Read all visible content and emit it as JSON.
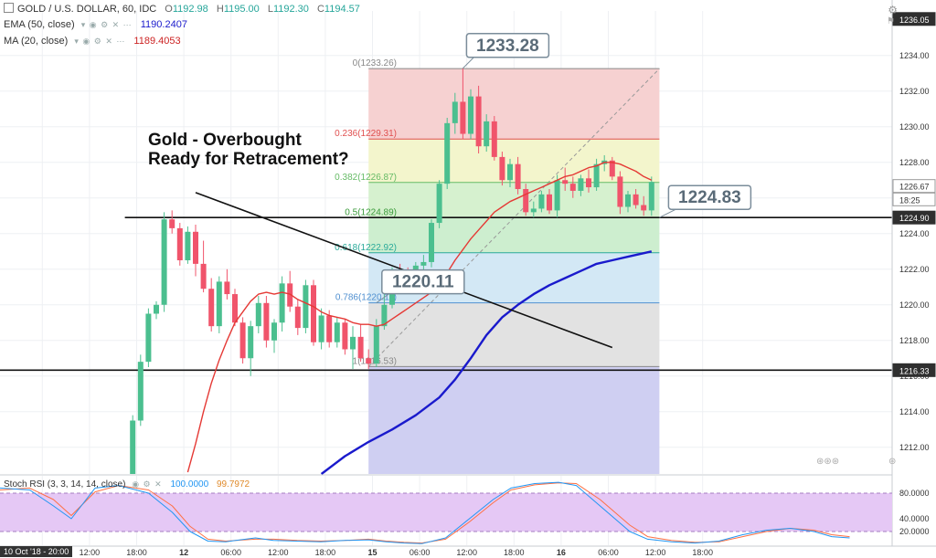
{
  "header": {
    "symbol": "GOLD / U.S. DOLLAR, 60, IDC",
    "o_label": "O",
    "o_val": "1192.98",
    "h_label": "H",
    "h_val": "1195.00",
    "l_label": "L",
    "l_val": "1192.30",
    "c_label": "C",
    "c_val": "1194.57",
    "ema_label": "EMA (50, close)",
    "ema_val": "1190.2407",
    "ma_label": "MA (20, close)",
    "ma_val": "1189.4053",
    "rsi_label": "Stoch RSI (3, 3, 14, 14, close)",
    "rsi_k": "100.0000",
    "rsi_d": "99.7972"
  },
  "bottom_date": "10 Oct '18 - 20:00",
  "chart_data": {
    "type": "candlestick",
    "ylim": [
      1210.5,
      1236.5
    ],
    "yticks": [
      "1212.00",
      "1214.00",
      "1216.00",
      "1218.00",
      "1220.00",
      "1222.00",
      "1224.00",
      "1226.00",
      "1228.00",
      "1230.00",
      "1232.00",
      "1234.00"
    ],
    "xticks": [
      {
        "i": 5.5,
        "label": "06:00"
      },
      {
        "i": 11.5,
        "label": "12:00"
      },
      {
        "i": 17.5,
        "label": "18:00"
      },
      {
        "i": 23.5,
        "label": "12"
      },
      {
        "i": 29.5,
        "label": "06:00"
      },
      {
        "i": 35.5,
        "label": "12:00"
      },
      {
        "i": 41.5,
        "label": "18:00"
      },
      {
        "i": 47.5,
        "label": "15"
      },
      {
        "i": 53.5,
        "label": "06:00"
      },
      {
        "i": 59.5,
        "label": "12:00"
      },
      {
        "i": 65.5,
        "label": "18:00"
      },
      {
        "i": 71.5,
        "label": "16"
      },
      {
        "i": 77.5,
        "label": "06:00"
      },
      {
        "i": 83.5,
        "label": "12:00"
      },
      {
        "i": 89.5,
        "label": "18:00"
      }
    ],
    "candles": [
      [
        17,
        1210.5,
        1213.8,
        1210.5,
        1213.5
      ],
      [
        18,
        1213.5,
        1217.2,
        1213.2,
        1216.8
      ],
      [
        19,
        1216.8,
        1219.8,
        1216.5,
        1219.5
      ],
      [
        20,
        1219.5,
        1220.2,
        1219.2,
        1220.0
      ],
      [
        21,
        1220.0,
        1225.2,
        1219.6,
        1224.8
      ],
      [
        22,
        1224.8,
        1225.3,
        1224.0,
        1224.3
      ],
      [
        23,
        1224.3,
        1224.6,
        1222.2,
        1222.5
      ],
      [
        24,
        1222.5,
        1224.4,
        1222.3,
        1224.1
      ],
      [
        25,
        1224.1,
        1224.5,
        1221.6,
        1222.3
      ],
      [
        26,
        1222.3,
        1223.6,
        1220.7,
        1220.9
      ],
      [
        27,
        1220.9,
        1221.5,
        1218.5,
        1218.8
      ],
      [
        28,
        1218.8,
        1221.6,
        1218.4,
        1221.3
      ],
      [
        29,
        1221.3,
        1222.0,
        1220.3,
        1220.6
      ],
      [
        30,
        1220.6,
        1220.9,
        1218.8,
        1219.0
      ],
      [
        31,
        1219.0,
        1219.3,
        1216.7,
        1217.0
      ],
      [
        32,
        1217.0,
        1219.1,
        1216.0,
        1218.8
      ],
      [
        33,
        1218.8,
        1220.5,
        1218.4,
        1220.1
      ],
      [
        34,
        1220.1,
        1220.5,
        1217.6,
        1218.0
      ],
      [
        35,
        1218.0,
        1219.2,
        1217.3,
        1219.0
      ],
      [
        36,
        1219.0,
        1221.6,
        1218.5,
        1221.2
      ],
      [
        37,
        1221.2,
        1221.9,
        1219.6,
        1219.9
      ],
      [
        38,
        1219.9,
        1220.3,
        1218.3,
        1218.7
      ],
      [
        39,
        1218.7,
        1221.4,
        1218.4,
        1221.1
      ],
      [
        40,
        1221.1,
        1221.4,
        1217.7,
        1217.9
      ],
      [
        41,
        1217.9,
        1219.8,
        1217.5,
        1219.4
      ],
      [
        42,
        1219.4,
        1219.7,
        1217.6,
        1217.9
      ],
      [
        43,
        1217.9,
        1219.3,
        1217.6,
        1219.0
      ],
      [
        44,
        1219.0,
        1219.2,
        1217.2,
        1217.5
      ],
      [
        45,
        1217.5,
        1218.8,
        1216.4,
        1218.2
      ],
      [
        46,
        1218.2,
        1218.9,
        1216.8,
        1217.0
      ],
      [
        47,
        1217.0,
        1217.5,
        1216.4,
        1216.7
      ],
      [
        48,
        1216.7,
        1219.2,
        1216.5,
        1218.8
      ],
      [
        49,
        1218.8,
        1220.6,
        1218.6,
        1220.0
      ],
      [
        50,
        1220.0,
        1222.1,
        1219.8,
        1221.9
      ],
      [
        51,
        1221.9,
        1222.3,
        1221.5,
        1221.8
      ],
      [
        52,
        1221.8,
        1222.1,
        1221.2,
        1221.5
      ],
      [
        53,
        1221.5,
        1222.4,
        1221.3,
        1222.2
      ],
      [
        54,
        1222.2,
        1222.8,
        1221.9,
        1222.4
      ],
      [
        55,
        1222.4,
        1224.8,
        1222.1,
        1224.6
      ],
      [
        56,
        1224.6,
        1227.0,
        1224.3,
        1226.8
      ],
      [
        57,
        1226.8,
        1230.5,
        1226.5,
        1230.2
      ],
      [
        58,
        1230.2,
        1231.9,
        1229.6,
        1231.4
      ],
      [
        59,
        1231.4,
        1233.28,
        1229.3,
        1229.6
      ],
      [
        60,
        1229.6,
        1232.1,
        1229.3,
        1231.7
      ],
      [
        61,
        1231.7,
        1232.3,
        1228.5,
        1228.9
      ],
      [
        62,
        1228.9,
        1230.7,
        1228.6,
        1230.3
      ],
      [
        63,
        1230.3,
        1230.6,
        1228.1,
        1228.3
      ],
      [
        64,
        1228.3,
        1228.6,
        1226.7,
        1227.0
      ],
      [
        65,
        1227.0,
        1228.2,
        1226.6,
        1227.9
      ],
      [
        66,
        1227.9,
        1228.3,
        1226.2,
        1226.5
      ],
      [
        67,
        1226.5,
        1226.8,
        1225.0,
        1225.2
      ],
      [
        68,
        1225.2,
        1225.8,
        1224.9,
        1225.4
      ],
      [
        69,
        1225.4,
        1226.4,
        1225.2,
        1226.2
      ],
      [
        70,
        1226.2,
        1226.5,
        1225.1,
        1225.3
      ],
      [
        71,
        1225.3,
        1227.3,
        1224.9,
        1227.0
      ],
      [
        72,
        1227.0,
        1227.7,
        1226.4,
        1226.8
      ],
      [
        73,
        1226.8,
        1227.2,
        1226.0,
        1226.4
      ],
      [
        74,
        1226.4,
        1227.3,
        1226.1,
        1227.1
      ],
      [
        75,
        1227.1,
        1227.6,
        1226.3,
        1226.6
      ],
      [
        76,
        1226.6,
        1228.2,
        1226.4,
        1227.9
      ],
      [
        77,
        1227.9,
        1228.4,
        1227.5,
        1228.1
      ],
      [
        78,
        1228.1,
        1228.3,
        1227.0,
        1227.2
      ],
      [
        79,
        1227.2,
        1227.5,
        1225.1,
        1225.5
      ],
      [
        80,
        1225.5,
        1226.4,
        1225.2,
        1226.2
      ],
      [
        81,
        1226.2,
        1226.5,
        1225.4,
        1225.6
      ],
      [
        82,
        1225.6,
        1226.1,
        1225.0,
        1225.3
      ],
      [
        83,
        1225.3,
        1227.2,
        1225.0,
        1226.9
      ]
    ],
    "ma20": [
      [
        24,
        1210.6
      ],
      [
        25,
        1212.2
      ],
      [
        26,
        1214.0
      ],
      [
        27,
        1215.6
      ],
      [
        28,
        1216.9
      ],
      [
        29,
        1218.0
      ],
      [
        30,
        1219.0
      ],
      [
        31,
        1219.6
      ],
      [
        32,
        1220.2
      ],
      [
        33,
        1220.6
      ],
      [
        34,
        1220.7
      ],
      [
        35,
        1220.6
      ],
      [
        36,
        1220.7
      ],
      [
        37,
        1220.6
      ],
      [
        38,
        1220.3
      ],
      [
        39,
        1220.1
      ],
      [
        40,
        1219.9
      ],
      [
        41,
        1219.6
      ],
      [
        42,
        1219.4
      ],
      [
        43,
        1219.3
      ],
      [
        44,
        1219.2
      ],
      [
        45,
        1219.0
      ],
      [
        46,
        1218.9
      ],
      [
        47,
        1218.9
      ],
      [
        48,
        1218.8
      ],
      [
        49,
        1218.9
      ],
      [
        50,
        1219.2
      ],
      [
        51,
        1219.5
      ],
      [
        52,
        1219.8
      ],
      [
        53,
        1220.1
      ],
      [
        54,
        1220.4
      ],
      [
        55,
        1220.7
      ],
      [
        56,
        1221.2
      ],
      [
        57,
        1221.8
      ],
      [
        58,
        1222.5
      ],
      [
        59,
        1223.1
      ],
      [
        60,
        1223.7
      ],
      [
        61,
        1224.2
      ],
      [
        62,
        1224.7
      ],
      [
        63,
        1225.2
      ],
      [
        64,
        1225.5
      ],
      [
        65,
        1225.8
      ],
      [
        66,
        1226.0
      ],
      [
        67,
        1226.2
      ],
      [
        68,
        1226.4
      ],
      [
        69,
        1226.6
      ],
      [
        70,
        1226.8
      ],
      [
        71,
        1227.0
      ],
      [
        72,
        1227.2
      ],
      [
        73,
        1227.3
      ],
      [
        74,
        1227.5
      ],
      [
        75,
        1227.7
      ],
      [
        76,
        1227.8
      ],
      [
        77,
        1228.0
      ],
      [
        78,
        1228.0
      ],
      [
        79,
        1227.9
      ],
      [
        80,
        1227.7
      ],
      [
        81,
        1227.5
      ],
      [
        82,
        1227.2
      ],
      [
        83,
        1227.0
      ]
    ],
    "ema50": [
      [
        41,
        1210.5
      ],
      [
        44,
        1211.5
      ],
      [
        47,
        1212.3
      ],
      [
        50,
        1213.0
      ],
      [
        53,
        1213.8
      ],
      [
        56,
        1214.8
      ],
      [
        58,
        1215.8
      ],
      [
        60,
        1217.0
      ],
      [
        62,
        1218.3
      ],
      [
        64,
        1219.3
      ],
      [
        66,
        1220.0
      ],
      [
        68,
        1220.6
      ],
      [
        70,
        1221.1
      ],
      [
        72,
        1221.5
      ],
      [
        74,
        1221.9
      ],
      [
        76,
        1222.3
      ],
      [
        78,
        1222.5
      ],
      [
        80,
        1222.7
      ],
      [
        83,
        1223.0
      ]
    ],
    "fib": {
      "x_start": 47,
      "x_end": 84,
      "levels": [
        {
          "ratio": "0",
          "price": 1233.26,
          "label": "0(1233.26)",
          "color": "#888888"
        },
        {
          "ratio": "0.236",
          "price": 1229.31,
          "label": "0.236(1229.31)",
          "color": "#e05050"
        },
        {
          "ratio": "0.382",
          "price": 1226.87,
          "label": "0.382(1226.87)",
          "color": "#66bb66"
        },
        {
          "ratio": "0.5",
          "price": 1224.89,
          "label": "0.5(1224.89)",
          "color": "#3a9a3a"
        },
        {
          "ratio": "0.618",
          "price": 1222.92,
          "label": "0.618(1222.92)",
          "color": "#2aaa9a"
        },
        {
          "ratio": "0.786",
          "price": 1220.11,
          "label": "0.786(1220.11)",
          "color": "#5090d0"
        },
        {
          "ratio": "1",
          "price": 1216.53,
          "label": "1(1216.53)",
          "color": "#888888"
        }
      ]
    },
    "hlines": [
      {
        "price": 1224.9
      },
      {
        "price": 1216.33
      }
    ],
    "trendline": [
      [
        25,
        1226.3
      ],
      [
        78,
        1217.6
      ]
    ],
    "callouts": [
      {
        "label": "1233.28",
        "price": 1233.28,
        "i": 59
      },
      {
        "label": "1220.11",
        "price": 1220.11,
        "i": 48
      },
      {
        "label": "1224.83",
        "price": 1224.9,
        "i": 84
      }
    ],
    "title_lines": [
      "Gold - Overbought",
      "Ready for Retracement?"
    ],
    "price_tags": [
      {
        "label": "1236.05",
        "price": 1236.05,
        "bg": "#2f2f2f",
        "fg": "#ffffff"
      },
      {
        "label": "1226.67",
        "price": 1226.67,
        "bg": "#ffffff",
        "fg": "#333333"
      },
      {
        "label": "18:25",
        "price": 1225.92,
        "bg": "#ffffff",
        "fg": "#333333"
      },
      {
        "label": "1224.90",
        "price": 1224.9,
        "bg": "#2f2f2f",
        "fg": "#ffffff"
      },
      {
        "label": "1216.33",
        "price": 1216.33,
        "bg": "#2f2f2f",
        "fg": "#ffffff"
      }
    ],
    "rsi": {
      "yticks": [
        "80.0000",
        "40.0000",
        "20.0000"
      ],
      "band": [
        20,
        80
      ],
      "k": [
        [
          0,
          88
        ],
        [
          5,
          85
        ],
        [
          9,
          60
        ],
        [
          12,
          40
        ],
        [
          16,
          88
        ],
        [
          20,
          92
        ],
        [
          25,
          80
        ],
        [
          29,
          50
        ],
        [
          32,
          20
        ],
        [
          35,
          5
        ],
        [
          38,
          4
        ],
        [
          43,
          10
        ],
        [
          46,
          6
        ],
        [
          50,
          5
        ],
        [
          54,
          4
        ],
        [
          58,
          6
        ],
        [
          62,
          7
        ],
        [
          65,
          4
        ],
        [
          68,
          2
        ],
        [
          71,
          1
        ],
        [
          75,
          10
        ],
        [
          79,
          40
        ],
        [
          83,
          70
        ],
        [
          86,
          88
        ],
        [
          90,
          95
        ],
        [
          94,
          97
        ],
        [
          97,
          92
        ],
        [
          101,
          60
        ],
        [
          106,
          20
        ],
        [
          109,
          8
        ],
        [
          113,
          4
        ],
        [
          117,
          2
        ],
        [
          121,
          5
        ],
        [
          125,
          15
        ],
        [
          129,
          22
        ],
        [
          133,
          25
        ],
        [
          137,
          20
        ],
        [
          140,
          12
        ],
        [
          143,
          10
        ]
      ],
      "d": [
        [
          0,
          85
        ],
        [
          5,
          88
        ],
        [
          9,
          70
        ],
        [
          12,
          45
        ],
        [
          16,
          82
        ],
        [
          20,
          92
        ],
        [
          25,
          85
        ],
        [
          29,
          60
        ],
        [
          32,
          28
        ],
        [
          35,
          8
        ],
        [
          38,
          5
        ],
        [
          43,
          8
        ],
        [
          46,
          8
        ],
        [
          50,
          6
        ],
        [
          54,
          5
        ],
        [
          58,
          6
        ],
        [
          62,
          8
        ],
        [
          65,
          5
        ],
        [
          68,
          3
        ],
        [
          71,
          2
        ],
        [
          75,
          8
        ],
        [
          79,
          35
        ],
        [
          83,
          65
        ],
        [
          86,
          85
        ],
        [
          90,
          93
        ],
        [
          94,
          96
        ],
        [
          97,
          95
        ],
        [
          101,
          70
        ],
        [
          106,
          30
        ],
        [
          109,
          12
        ],
        [
          113,
          6
        ],
        [
          117,
          3
        ],
        [
          121,
          4
        ],
        [
          125,
          12
        ],
        [
          129,
          20
        ],
        [
          133,
          25
        ],
        [
          137,
          22
        ],
        [
          140,
          15
        ],
        [
          143,
          12
        ]
      ]
    }
  },
  "colors": {
    "up": "#4bbf8f",
    "down": "#f0546b",
    "ma20": "#e53935",
    "ema50": "#1a1acc",
    "rsi_k": "#2196f3",
    "rsi_d": "#ff7043",
    "rsi_band": "#e5c8f5"
  }
}
